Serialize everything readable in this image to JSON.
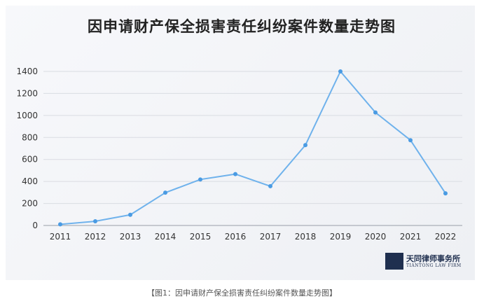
{
  "chart_data": {
    "type": "line",
    "title": "因申请财产保全损害责任纠纷案件数量走势图",
    "x": [
      "2011",
      "2012",
      "2013",
      "2014",
      "2015",
      "2016",
      "2017",
      "2018",
      "2019",
      "2020",
      "2021",
      "2022"
    ],
    "series": [
      {
        "values": [
          10,
          38,
          97,
          298,
          418,
          467,
          357,
          730,
          1400,
          1027,
          775,
          292
        ]
      }
    ],
    "yticks": [
      0,
      200,
      400,
      600,
      800,
      1000,
      1200,
      1400
    ],
    "ylim": [
      0,
      1400
    ],
    "grid": true,
    "legend": "none",
    "colors": {
      "line": "#6fb2ec",
      "marker": "#4a9be3",
      "grid": "#d9dce2"
    }
  },
  "watermark": {
    "cn": "天同律师事务所",
    "en": "TIANTONG LAW FIRM"
  },
  "caption": "【图1：因申请财产保全损害责任纠纷案件数量走势图】"
}
